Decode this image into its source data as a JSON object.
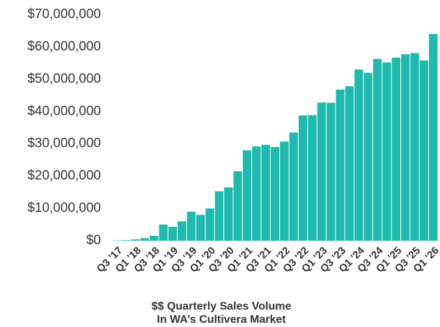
{
  "chart_data": {
    "type": "bar",
    "title": "$$ Quarterly Sales Volume",
    "subtitle": "In WA’s Cultivera Market",
    "categories": [
      "Q3 '17",
      null,
      "Q1 '18",
      null,
      "Q3 '18",
      null,
      "Q1 '19",
      null,
      "Q3 '19",
      null,
      "Q1 '20",
      null,
      "Q3 '20",
      null,
      "Q1 '21",
      null,
      "Q3 '21",
      null,
      "Q1 '22",
      null,
      "Q3 '22",
      null,
      "Q1 '23",
      null,
      "Q3 '23",
      null,
      "Q1 '24",
      null,
      "Q3 '24",
      null,
      "Q1 '25",
      null,
      "Q3 '25",
      null,
      "Q1 '26"
    ],
    "values": [
      100000,
      200000,
      400000,
      800000,
      1500000,
      5000000,
      4300000,
      6000000,
      9000000,
      8000000,
      10000000,
      15300000,
      16500000,
      21500000,
      28000000,
      29200000,
      29700000,
      29000000,
      30700000,
      33500000,
      38800000,
      38900000,
      42800000,
      42700000,
      46800000,
      47800000,
      53000000,
      52000000,
      56300000,
      55200000,
      56700000,
      57700000,
      58100000,
      55800000,
      64000000
    ],
    "color": "#1fbaae",
    "ylim": [
      0,
      70000000
    ],
    "yticks": [
      {
        "value": 0,
        "label": "$0"
      },
      {
        "value": 10000000,
        "label": "$10,000,000"
      },
      {
        "value": 20000000,
        "label": "$20,000,000"
      },
      {
        "value": 30000000,
        "label": "$30,000,000"
      },
      {
        "value": 40000000,
        "label": "$40,000,000"
      },
      {
        "value": 50000000,
        "label": "$50,000,000"
      },
      {
        "value": 60000000,
        "label": "$60,000,000"
      },
      {
        "value": 70000000,
        "label": "$70,000,000"
      }
    ],
    "grid": false
  }
}
